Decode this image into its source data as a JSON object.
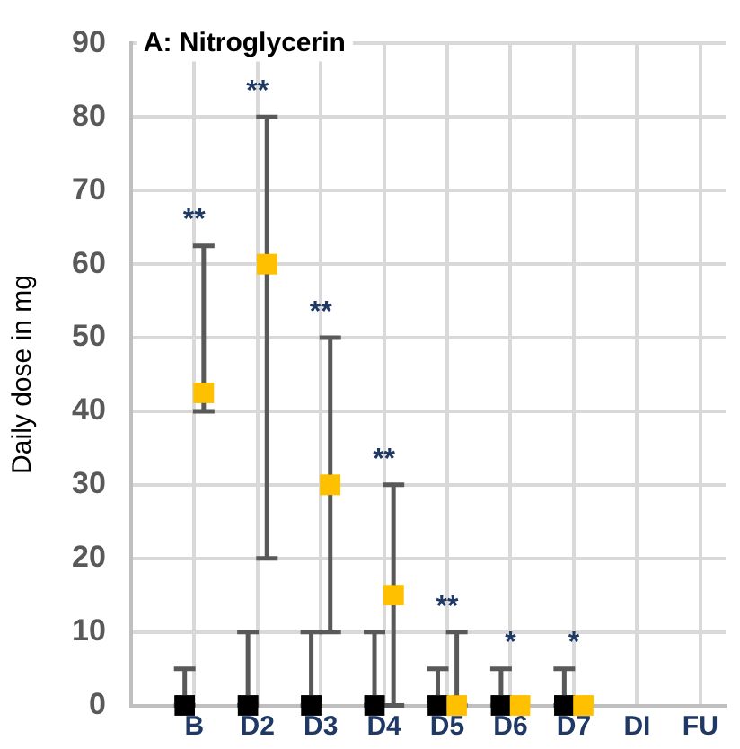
{
  "chart_data": {
    "type": "scatter",
    "title": "A: Nitroglycerin",
    "ylabel": "Daily dose in mg",
    "categories": [
      "B",
      "D2",
      "D3",
      "D4",
      "D5",
      "D6",
      "D7",
      "DI",
      "FU"
    ],
    "series": [
      {
        "color": "#000000",
        "values": [
          0,
          0,
          0,
          0,
          0,
          0,
          0,
          null,
          null
        ],
        "errors": [
          [
            0,
            5
          ],
          [
            0,
            10
          ],
          [
            0,
            10
          ],
          [
            0,
            10
          ],
          [
            0,
            5
          ],
          [
            0,
            5
          ],
          [
            0,
            5
          ],
          null,
          null
        ]
      },
      {
        "color": "#ffc000",
        "values": [
          42.5,
          60,
          30,
          15,
          0,
          0,
          0,
          null,
          null
        ],
        "errors": [
          [
            40,
            62.5
          ],
          [
            20,
            80
          ],
          [
            10,
            50
          ],
          [
            0,
            30
          ],
          [
            0,
            10
          ],
          null,
          null,
          null,
          null
        ]
      }
    ],
    "annotations": [
      "**",
      "**",
      "**",
      "**",
      "**",
      "*",
      "*"
    ],
    "ylim": [
      0,
      90
    ],
    "yticks": [
      0,
      10,
      20,
      30,
      40,
      50,
      60,
      70,
      80,
      90
    ],
    "grid": true,
    "legend": false,
    "marker": "square"
  }
}
